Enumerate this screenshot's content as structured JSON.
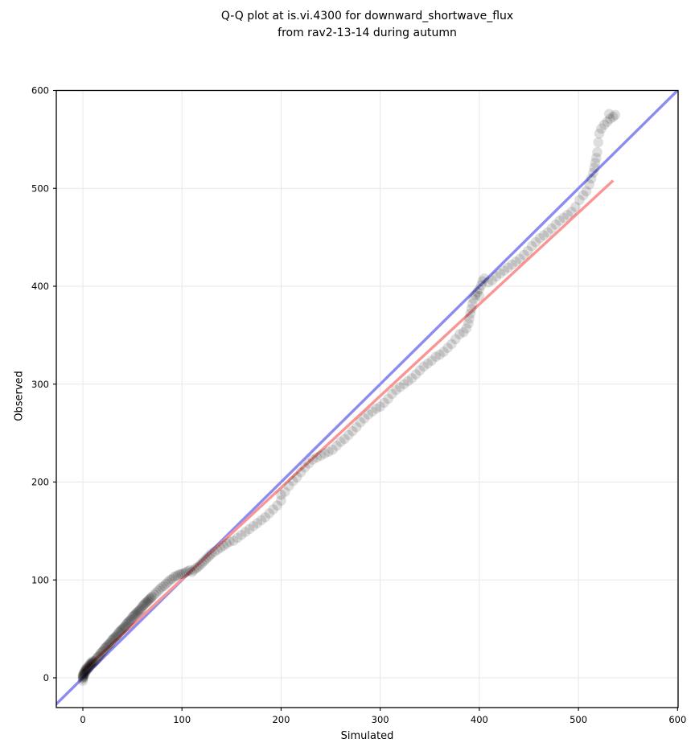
{
  "title": {
    "line1": "Q-Q plot at is.vi.4300 for downward_shortwave_flux",
    "line2": "from rav2-13-14 during autumn"
  },
  "chart_data": {
    "type": "scatter",
    "title": "Q-Q plot at is.vi.4300 for downward_shortwave_flux from rav2-13-14 during autumn",
    "xlabel": "Simulated",
    "ylabel": "Observed",
    "xlim": [
      -27,
      600
    ],
    "ylim": [
      -30,
      600
    ],
    "x_ticks": [
      0,
      100,
      200,
      300,
      400,
      500,
      600
    ],
    "y_ticks": [
      0,
      100,
      200,
      300,
      400,
      500,
      600
    ],
    "grid": true,
    "legend": "none",
    "colors": {
      "identity_line": "#8b8bf0",
      "fit_line": "#f99595",
      "marker": "#000000",
      "grid": "#e7e7e7",
      "spine": "#000000",
      "text": "#000000",
      "background": "#ffffff"
    },
    "marker": {
      "opacity": 0.13,
      "radius_px": 6.3
    },
    "identity_line": {
      "from": [
        -30,
        -30
      ],
      "to": [
        610,
        610
      ]
    },
    "fit_line": {
      "from": [
        0,
        7
      ],
      "to": [
        535,
        508
      ]
    },
    "points": [
      [
        0,
        -3
      ],
      [
        0,
        -1
      ],
      [
        0,
        0
      ],
      [
        0,
        1
      ],
      [
        0,
        2
      ],
      [
        0,
        3
      ],
      [
        1,
        1
      ],
      [
        1,
        3
      ],
      [
        1,
        4
      ],
      [
        1,
        5
      ],
      [
        2,
        4
      ],
      [
        2,
        6
      ],
      [
        2,
        7
      ],
      [
        3,
        6
      ],
      [
        3,
        8
      ],
      [
        3,
        9
      ],
      [
        4,
        8
      ],
      [
        4,
        10
      ],
      [
        5,
        9
      ],
      [
        5,
        11
      ],
      [
        6,
        10
      ],
      [
        6,
        12
      ],
      [
        7,
        12
      ],
      [
        7,
        14
      ],
      [
        8,
        13
      ],
      [
        8,
        15
      ],
      [
        9,
        14
      ],
      [
        9,
        16
      ],
      [
        10,
        15
      ],
      [
        10,
        17
      ],
      [
        11,
        16
      ],
      [
        12,
        17
      ],
      [
        13,
        18
      ],
      [
        14,
        20
      ],
      [
        15,
        21
      ],
      [
        16,
        22
      ],
      [
        17,
        23
      ],
      [
        18,
        25
      ],
      [
        19,
        26
      ],
      [
        20,
        27
      ],
      [
        21,
        28
      ],
      [
        22,
        30
      ],
      [
        23,
        31
      ],
      [
        24,
        32
      ],
      [
        25,
        33
      ],
      [
        26,
        34
      ],
      [
        27,
        35
      ],
      [
        28,
        36
      ],
      [
        29,
        38
      ],
      [
        30,
        39
      ],
      [
        31,
        40
      ],
      [
        32,
        41
      ],
      [
        33,
        42
      ],
      [
        34,
        43
      ],
      [
        35,
        44
      ],
      [
        36,
        46
      ],
      [
        37,
        47
      ],
      [
        38,
        48
      ],
      [
        39,
        49
      ],
      [
        40,
        50
      ],
      [
        41,
        51
      ],
      [
        42,
        52
      ],
      [
        43,
        53
      ],
      [
        44,
        55
      ],
      [
        45,
        56
      ],
      [
        46,
        57
      ],
      [
        47,
        58
      ],
      [
        48,
        59
      ],
      [
        49,
        60
      ],
      [
        50,
        62
      ],
      [
        51,
        63
      ],
      [
        52,
        64
      ],
      [
        53,
        65
      ],
      [
        54,
        66
      ],
      [
        55,
        67
      ],
      [
        56,
        68
      ],
      [
        57,
        69
      ],
      [
        58,
        70
      ],
      [
        59,
        71
      ],
      [
        60,
        73
      ],
      [
        61,
        74
      ],
      [
        62,
        75
      ],
      [
        63,
        76
      ],
      [
        64,
        77
      ],
      [
        65,
        78
      ],
      [
        66,
        79
      ],
      [
        67,
        80
      ],
      [
        68,
        81
      ],
      [
        69,
        82
      ],
      [
        70,
        83
      ],
      [
        72,
        85
      ],
      [
        74,
        87
      ],
      [
        76,
        89
      ],
      [
        78,
        91
      ],
      [
        80,
        93
      ],
      [
        82,
        94
      ],
      [
        84,
        96
      ],
      [
        86,
        98
      ],
      [
        88,
        100
      ],
      [
        90,
        101
      ],
      [
        92,
        103
      ],
      [
        94,
        104
      ],
      [
        96,
        105
      ],
      [
        98,
        106
      ],
      [
        100,
        106
      ],
      [
        102,
        107
      ],
      [
        104,
        108
      ],
      [
        106,
        109
      ],
      [
        108,
        110
      ],
      [
        110,
        108
      ],
      [
        112,
        110
      ],
      [
        114,
        112
      ],
      [
        116,
        113
      ],
      [
        118,
        115
      ],
      [
        120,
        117
      ],
      [
        122,
        119
      ],
      [
        124,
        121
      ],
      [
        126,
        123
      ],
      [
        128,
        125
      ],
      [
        130,
        127
      ],
      [
        133,
        129
      ],
      [
        136,
        131
      ],
      [
        139,
        133
      ],
      [
        142,
        135
      ],
      [
        145,
        137
      ],
      [
        148,
        139
      ],
      [
        152,
        140
      ],
      [
        156,
        143
      ],
      [
        160,
        146
      ],
      [
        164,
        149
      ],
      [
        168,
        152
      ],
      [
        172,
        155
      ],
      [
        176,
        158
      ],
      [
        180,
        161
      ],
      [
        184,
        164
      ],
      [
        188,
        168
      ],
      [
        192,
        172
      ],
      [
        196,
        176
      ],
      [
        200,
        181
      ],
      [
        200,
        187
      ],
      [
        204,
        190
      ],
      [
        208,
        196
      ],
      [
        212,
        201
      ],
      [
        216,
        205
      ],
      [
        220,
        210
      ],
      [
        224,
        215
      ],
      [
        228,
        219
      ],
      [
        232,
        223
      ],
      [
        236,
        225
      ],
      [
        240,
        227
      ],
      [
        244,
        229
      ],
      [
        248,
        231
      ],
      [
        252,
        233
      ],
      [
        256,
        237
      ],
      [
        260,
        241
      ],
      [
        264,
        244
      ],
      [
        268,
        248
      ],
      [
        272,
        252
      ],
      [
        276,
        256
      ],
      [
        280,
        261
      ],
      [
        284,
        265
      ],
      [
        288,
        269
      ],
      [
        292,
        272
      ],
      [
        296,
        275
      ],
      [
        300,
        277
      ],
      [
        304,
        281
      ],
      [
        308,
        285
      ],
      [
        312,
        290
      ],
      [
        316,
        294
      ],
      [
        320,
        297
      ],
      [
        324,
        300
      ],
      [
        328,
        303
      ],
      [
        332,
        306
      ],
      [
        336,
        310
      ],
      [
        340,
        314
      ],
      [
        344,
        318
      ],
      [
        348,
        321
      ],
      [
        352,
        324
      ],
      [
        356,
        328
      ],
      [
        360,
        330
      ],
      [
        364,
        333
      ],
      [
        368,
        337
      ],
      [
        372,
        341
      ],
      [
        376,
        346
      ],
      [
        380,
        351
      ],
      [
        384,
        353
      ],
      [
        387,
        357
      ],
      [
        389,
        362
      ],
      [
        390,
        367
      ],
      [
        391,
        372
      ],
      [
        392,
        377
      ],
      [
        393,
        382
      ],
      [
        394,
        387
      ],
      [
        396,
        391
      ],
      [
        398,
        394
      ],
      [
        400,
        390
      ],
      [
        400,
        397
      ],
      [
        402,
        401
      ],
      [
        403,
        405
      ],
      [
        405,
        408
      ],
      [
        409,
        404
      ],
      [
        413,
        406
      ],
      [
        417,
        410
      ],
      [
        421,
        413
      ],
      [
        425,
        416
      ],
      [
        429,
        419
      ],
      [
        433,
        422
      ],
      [
        437,
        425
      ],
      [
        441,
        428
      ],
      [
        445,
        432
      ],
      [
        449,
        436
      ],
      [
        453,
        441
      ],
      [
        457,
        445
      ],
      [
        461,
        449
      ],
      [
        465,
        452
      ],
      [
        469,
        455
      ],
      [
        473,
        459
      ],
      [
        477,
        463
      ],
      [
        481,
        467
      ],
      [
        485,
        470
      ],
      [
        489,
        473
      ],
      [
        493,
        476
      ],
      [
        497,
        481
      ],
      [
        501,
        488
      ],
      [
        505,
        493
      ],
      [
        508,
        497
      ],
      [
        511,
        504
      ],
      [
        513,
        510
      ],
      [
        515,
        516
      ],
      [
        516,
        521
      ],
      [
        517,
        526
      ],
      [
        518,
        531
      ],
      [
        519,
        537
      ],
      [
        520,
        547
      ],
      [
        521,
        556
      ],
      [
        523,
        561
      ],
      [
        526,
        565
      ],
      [
        529,
        568
      ],
      [
        531,
        576
      ],
      [
        532,
        571
      ],
      [
        535,
        573
      ],
      [
        537,
        575
      ]
    ]
  }
}
